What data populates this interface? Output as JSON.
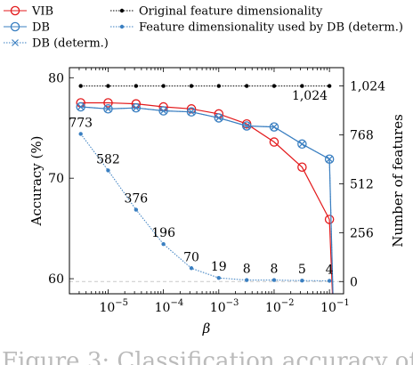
{
  "chart_data": {
    "type": "line",
    "xlabel": "β",
    "ylabel_left": "Accuracy (%)",
    "ylabel_right": "Number of features",
    "x_scale": "log",
    "xlim": [
      2e-06,
      0.18
    ],
    "ylim_left": [
      58.5,
      81
    ],
    "ylim_right": [
      -64,
      1120
    ],
    "x_ticks": [
      1e-05,
      0.0001,
      0.001,
      0.01,
      0.1
    ],
    "x_tick_labels": [
      "10",
      "10",
      "10",
      "10",
      "10"
    ],
    "x_tick_exponents": [
      "−5",
      "−4",
      "−3",
      "−2",
      "−1"
    ],
    "y_ticks_left": [
      60,
      70,
      80
    ],
    "y_tick_labels_left": [
      "60",
      "70",
      "80"
    ],
    "y_ticks_right": [
      0,
      256,
      512,
      768,
      1024
    ],
    "y_tick_labels_right": [
      "0",
      "256",
      "512",
      "768",
      "1,024"
    ],
    "legend_placement": "top",
    "x": [
      3.2e-06,
      1e-05,
      3.2e-05,
      0.0001,
      0.00032,
      0.001,
      0.0032,
      0.01,
      0.032,
      0.1
    ],
    "series": [
      {
        "name": "VIB",
        "axis": "left",
        "color": "#e31a1c",
        "marker": "circle",
        "x": [
          3.2e-06,
          1e-05,
          3.2e-05,
          0.0001,
          0.00032,
          0.001,
          0.0032,
          0.01,
          0.032,
          0.1,
          0.12
        ],
        "values": [
          77.5,
          77.5,
          77.4,
          77.1,
          76.9,
          76.4,
          75.4,
          73.6,
          71.1,
          65.9,
          55.0
        ]
      },
      {
        "name": "DB",
        "axis": "left",
        "color": "#3a7fc1",
        "marker": "circle",
        "x": [
          3.2e-06,
          1e-05,
          3.2e-05,
          0.0001,
          0.00032,
          0.001,
          0.0032,
          0.01,
          0.032,
          0.1,
          0.12
        ],
        "values": [
          77.1,
          76.9,
          77.0,
          76.7,
          76.6,
          76.0,
          75.2,
          75.1,
          73.4,
          71.9,
          55.0
        ]
      },
      {
        "name": "DB (determ.)",
        "axis": "left",
        "color": "#3a7fc1",
        "marker": "x",
        "x": [
          3.2e-06,
          1e-05,
          3.2e-05,
          0.0001,
          0.00032,
          0.001,
          0.0032,
          0.01,
          0.032,
          0.1,
          0.12
        ],
        "values": [
          77.1,
          76.9,
          77.0,
          76.7,
          76.6,
          76.0,
          75.2,
          75.1,
          73.4,
          71.9,
          55.0
        ]
      },
      {
        "name": "Original feature dimensionality",
        "axis": "right",
        "color": "#000000",
        "marker": "dot",
        "values": [
          1024,
          1024,
          1024,
          1024,
          1024,
          1024,
          1024,
          1024,
          1024,
          1024
        ]
      },
      {
        "name": "Feature dimensionality used by DB (determ.)",
        "axis": "right",
        "color": "#3a7fc1",
        "marker": "dot",
        "values": [
          773,
          582,
          376,
          196,
          70,
          19,
          8,
          8,
          5,
          4
        ],
        "labels": [
          "773",
          "582",
          "376",
          "196",
          "70",
          "19",
          "8",
          "8",
          "5",
          "4"
        ]
      }
    ],
    "annotation": "1,024",
    "caption": "Figure 3: Classification accuracy of"
  }
}
